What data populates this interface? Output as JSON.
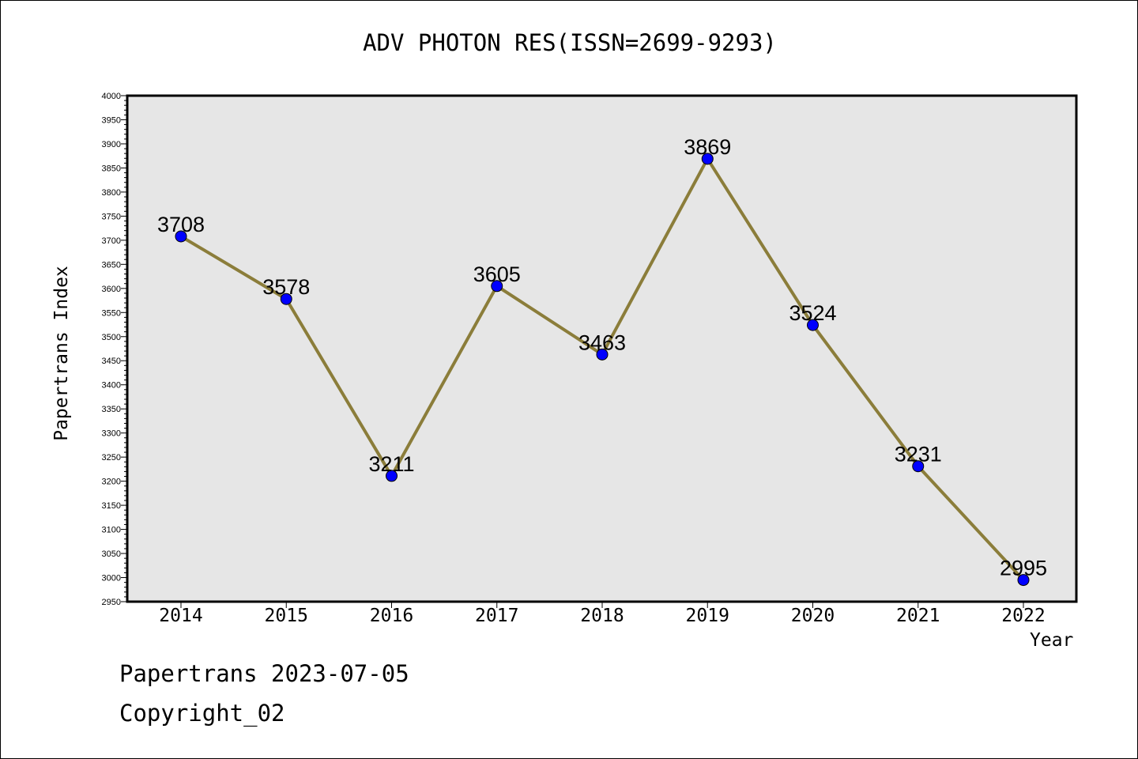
{
  "title": "ADV PHOTON RES(ISSN=2699-9293)",
  "footer": {
    "line1": "Papertrans 2023-07-05",
    "line2": "Copyright_02"
  },
  "colors": {
    "plot_background": "#e6e6e6",
    "line": "#8b7d3a",
    "marker": "#0000ff"
  },
  "chart_data": {
    "type": "line",
    "xlabel": "Year",
    "ylabel": "Papertrans Index",
    "ylim": [
      2950,
      4000
    ],
    "y_major_step": 50,
    "grid": false,
    "categories": [
      "2014",
      "2015",
      "2016",
      "2017",
      "2018",
      "2019",
      "2020",
      "2021",
      "2022"
    ],
    "series": [
      {
        "values": [
          3708,
          3578,
          3211,
          3605,
          3463,
          3869,
          3524,
          3231,
          2995
        ],
        "data_labels": [
          "3708",
          "3578",
          "3211",
          "3605",
          "3463",
          "3869",
          "3524",
          "3231",
          "2995"
        ]
      }
    ]
  }
}
